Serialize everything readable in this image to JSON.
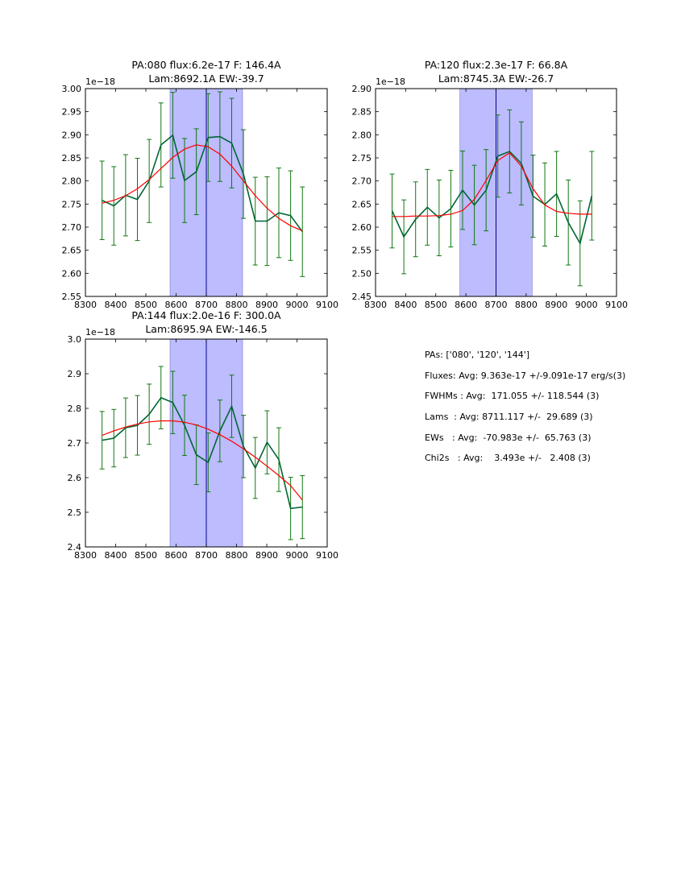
{
  "chart_data": [
    {
      "type": "line",
      "title": "PA:080 flux:6.2e-17 F: 146.4A\nLam:8692.1A EW:-39.7",
      "offset_label": "1e−18",
      "xlim": [
        8300,
        9100
      ],
      "ylim": [
        2.55,
        3.0
      ],
      "xticks": [
        8300,
        8400,
        8500,
        8600,
        8700,
        8800,
        8900,
        9000,
        9100
      ],
      "yticks": [
        2.55,
        2.6,
        2.65,
        2.7,
        2.75,
        2.8,
        2.85,
        2.9,
        2.95,
        3.0
      ],
      "ytick_labels": [
        "2.55",
        "2.60",
        "2.65",
        "2.70",
        "2.75",
        "2.80",
        "2.85",
        "2.90",
        "2.95",
        "3.00"
      ],
      "shaded_band": [
        8580,
        8820
      ],
      "vline": 8700,
      "x": [
        8355,
        8394,
        8433,
        8472,
        8511,
        8550,
        8589,
        8628,
        8667,
        8706,
        8745,
        8784,
        8823,
        8862,
        8901,
        8940,
        8979,
        9018
      ],
      "series": [
        {
          "values": [
            2.758,
            2.746,
            2.769,
            2.76,
            2.8,
            2.878,
            2.899,
            2.801,
            2.82,
            2.894,
            2.896,
            2.882,
            2.815,
            2.713,
            2.713,
            2.731,
            2.725,
            2.69
          ],
          "errors": [
            0.085,
            0.085,
            0.088,
            0.089,
            0.09,
            0.091,
            0.093,
            0.091,
            0.093,
            0.095,
            0.097,
            0.097,
            0.096,
            0.095,
            0.096,
            0.097,
            0.097,
            0.097
          ],
          "color": "#006633",
          "errcolor": "#117711"
        },
        {
          "values": [
            2.752,
            2.758,
            2.768,
            2.783,
            2.803,
            2.827,
            2.851,
            2.869,
            2.878,
            2.874,
            2.858,
            2.832,
            2.8,
            2.768,
            2.741,
            2.719,
            2.703,
            2.692
          ],
          "color": "#ff0000"
        }
      ]
    },
    {
      "type": "line",
      "title": "PA:120 flux:2.3e-17 F: 66.8A\nLam:8745.3A EW:-26.7",
      "offset_label": "1e−18",
      "xlim": [
        8300,
        9100
      ],
      "ylim": [
        2.45,
        2.9
      ],
      "xticks": [
        8300,
        8400,
        8500,
        8600,
        8700,
        8800,
        8900,
        9000,
        9100
      ],
      "yticks": [
        2.45,
        2.5,
        2.55,
        2.6,
        2.65,
        2.7,
        2.75,
        2.8,
        2.85,
        2.9
      ],
      "ytick_labels": [
        "2.45",
        "2.50",
        "2.55",
        "2.60",
        "2.65",
        "2.70",
        "2.75",
        "2.80",
        "2.85",
        "2.90"
      ],
      "shaded_band": [
        8580,
        8820
      ],
      "vline": 8700,
      "x": [
        8355,
        8394,
        8433,
        8472,
        8511,
        8550,
        8589,
        8628,
        8667,
        8706,
        8745,
        8784,
        8823,
        8862,
        8901,
        8940,
        8979,
        9018
      ],
      "series": [
        {
          "values": [
            2.635,
            2.579,
            2.617,
            2.643,
            2.62,
            2.64,
            2.68,
            2.648,
            2.68,
            2.754,
            2.764,
            2.738,
            2.667,
            2.649,
            2.672,
            2.61,
            2.565,
            2.668
          ],
          "errors": [
            0.08,
            0.08,
            0.081,
            0.082,
            0.082,
            0.083,
            0.085,
            0.086,
            0.088,
            0.089,
            0.09,
            0.09,
            0.089,
            0.09,
            0.092,
            0.092,
            0.092,
            0.096
          ],
          "color": "#006633",
          "errcolor": "#117711"
        },
        {
          "values": [
            2.623,
            2.623,
            2.624,
            2.624,
            2.625,
            2.628,
            2.636,
            2.66,
            2.701,
            2.744,
            2.761,
            2.732,
            2.683,
            2.648,
            2.634,
            2.63,
            2.628,
            2.628
          ],
          "color": "#ff0000"
        }
      ]
    },
    {
      "type": "line",
      "title": "PA:144 flux:2.0e-16 F: 300.0A\nLam:8695.9A EW:-146.5",
      "offset_label": "1e−18",
      "xlim": [
        8300,
        9100
      ],
      "ylim": [
        2.4,
        3.0
      ],
      "xticks": [
        8300,
        8400,
        8500,
        8600,
        8700,
        8800,
        8900,
        9000,
        9100
      ],
      "yticks": [
        2.4,
        2.5,
        2.6,
        2.7,
        2.8,
        2.9,
        3.0
      ],
      "ytick_labels": [
        "2.4",
        "2.5",
        "2.6",
        "2.7",
        "2.8",
        "2.9",
        "3.0"
      ],
      "shaded_band": [
        8580,
        8820
      ],
      "vline": 8700,
      "x": [
        8355,
        8394,
        8433,
        8472,
        8511,
        8550,
        8589,
        8628,
        8667,
        8706,
        8745,
        8784,
        8823,
        8862,
        8901,
        8940,
        8979,
        9018
      ],
      "series": [
        {
          "values": [
            2.708,
            2.714,
            2.744,
            2.751,
            2.783,
            2.831,
            2.817,
            2.751,
            2.666,
            2.644,
            2.735,
            2.806,
            2.69,
            2.628,
            2.702,
            2.652,
            2.511,
            2.515
          ],
          "errors": [
            0.083,
            0.083,
            0.086,
            0.086,
            0.087,
            0.09,
            0.09,
            0.087,
            0.086,
            0.085,
            0.089,
            0.09,
            0.09,
            0.088,
            0.091,
            0.092,
            0.09,
            0.091
          ],
          "color": "#006633",
          "errcolor": "#117711"
        },
        {
          "values": [
            2.722,
            2.735,
            2.746,
            2.755,
            2.761,
            2.764,
            2.764,
            2.76,
            2.752,
            2.74,
            2.724,
            2.705,
            2.683,
            2.659,
            2.633,
            2.606,
            2.577,
            2.535
          ],
          "color": "#ff0000"
        }
      ]
    }
  ],
  "stats": {
    "pas": "PAs: ['080', '120', '144']",
    "fluxes": "Fluxes: Avg: 9.363e-17 +/-9.091e-17 erg/s(3)",
    "fwhms": "FWHMs : Avg:  171.055 +/- 118.544 (3)",
    "lams": "Lams  : Avg: 8711.117 +/-  29.689 (3)",
    "ews": "EWs   : Avg:  -70.983e +/-  65.763 (3)",
    "chi2s": "Chi2s   : Avg:    3.493e +/-   2.408 (3)"
  },
  "colors": {
    "band": "#bcbcff",
    "vline": "#00008b",
    "data": "#006633",
    "fit": "#ff0000"
  }
}
